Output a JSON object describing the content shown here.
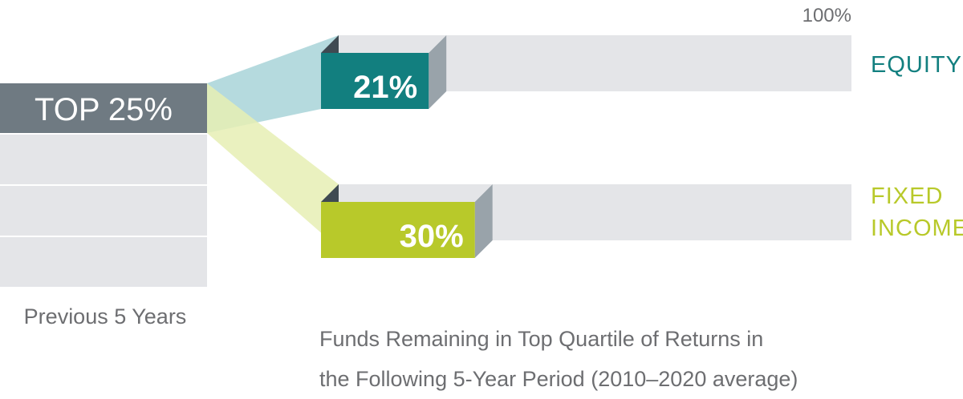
{
  "chart_data": {
    "type": "bar",
    "title": "",
    "xlabel": "",
    "ylabel": "",
    "scale_max_label": "100%",
    "xlim": [
      0,
      100
    ],
    "source": {
      "label": "TOP 25%",
      "value": 25,
      "caption": "Previous 5 Years",
      "empty_quartiles": 3
    },
    "categories": [
      "EQUITY",
      "FIXED INCOME"
    ],
    "category_lines": [
      [
        "EQUITY"
      ],
      [
        "FIXED",
        "INCOME"
      ]
    ],
    "values": [
      21,
      30
    ],
    "value_labels": [
      "21%",
      "30%"
    ],
    "caption_lines": [
      "Funds Remaining in Top Quartile of Returns in",
      "the Following 5-Year Period (2010–2020 average)"
    ],
    "grid": false,
    "legend": "none",
    "colors": {
      "source_box": "#6f7a82",
      "quartile_box": "#e4e5e8",
      "equity": "#127f7f",
      "equity_band": "#a8d4d8",
      "fixed_income": "#b8c92a",
      "fixed_income_band": "#e6efb4",
      "bar_track": "#e4e5e8",
      "bar_side": "#99a3aa",
      "bar_top": "#3f4a52",
      "caption": "#6d6e71",
      "white": "#ffffff"
    }
  }
}
